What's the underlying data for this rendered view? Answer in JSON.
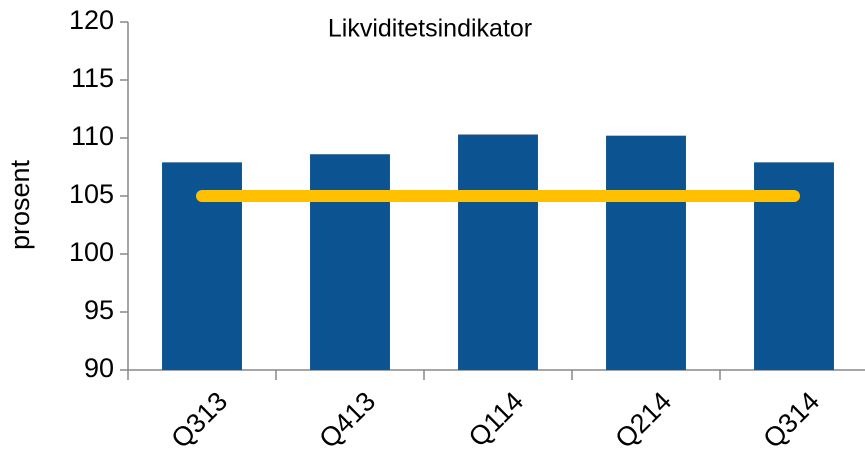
{
  "chart_data": {
    "type": "bar",
    "title": "Likviditetsindikator",
    "y_label": "prosent",
    "categories": [
      "Q313",
      "Q413",
      "Q114",
      "Q214",
      "Q314"
    ],
    "series": [
      {
        "type": "bar",
        "color": "#0b5391",
        "values": [
          107.9,
          108.6,
          110.3,
          110.2,
          107.9
        ]
      },
      {
        "type": "line",
        "color": "#ffc000",
        "values": [
          105,
          105,
          105,
          105,
          105
        ]
      }
    ],
    "ylim": [
      90,
      120
    ],
    "yticks": [
      90,
      95,
      100,
      105,
      110,
      115,
      120
    ],
    "grid": false
  }
}
